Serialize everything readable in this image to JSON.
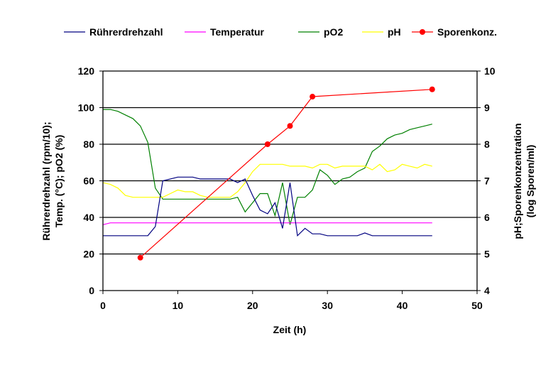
{
  "chart_data": {
    "type": "line",
    "xlabel": "Zeit (h)",
    "ylabel": "Rührerdrehzahl (rpm/10); Temp. (°C); pO2 (%)",
    "y2label": "pH;Sporenkonzentration (log Sporen/ml)",
    "xlim": [
      0,
      50
    ],
    "ylim": [
      0,
      120
    ],
    "y2lim": [
      4,
      10
    ],
    "xticks": [
      "0",
      "10",
      "20",
      "30",
      "40",
      "50"
    ],
    "yticks": [
      "0",
      "20",
      "40",
      "60",
      "80",
      "100",
      "120"
    ],
    "y2ticks": [
      "4",
      "5",
      "6",
      "7",
      "8",
      "9",
      "10"
    ],
    "grid": "horizontal",
    "legend_position": "top",
    "series": [
      {
        "name": "Rührerdrehzahl",
        "color": "#000080",
        "axis": "left",
        "marker": false,
        "x": [
          0,
          1,
          2,
          3,
          4,
          5,
          6,
          7,
          8,
          9,
          10,
          11,
          12,
          13,
          14,
          15,
          16,
          17,
          18,
          19,
          20,
          21,
          22,
          23,
          24,
          25,
          26,
          27,
          28,
          29,
          30,
          31,
          32,
          33,
          34,
          35,
          36,
          37,
          38,
          39,
          40,
          41,
          42,
          43,
          44
        ],
        "y": [
          30,
          30,
          30,
          30,
          30,
          30,
          30,
          35,
          60,
          61,
          62,
          62,
          62,
          61,
          61,
          61,
          61,
          61,
          59,
          61,
          52,
          44,
          42,
          48,
          34,
          59,
          30,
          34,
          31,
          31,
          30,
          30,
          30,
          30,
          30,
          31.5,
          30,
          30,
          30,
          30,
          30,
          30,
          30,
          30,
          30
        ]
      },
      {
        "name": "Temperatur",
        "color": "#FF00FF",
        "axis": "left",
        "marker": false,
        "x": [
          0,
          1,
          44
        ],
        "y": [
          36,
          37,
          37
        ]
      },
      {
        "name": "pO2",
        "color": "#008000",
        "axis": "left",
        "marker": false,
        "x": [
          0,
          1,
          2,
          3,
          4,
          5,
          6,
          7,
          8,
          9,
          10,
          11,
          12,
          13,
          14,
          15,
          16,
          17,
          18,
          19,
          20,
          21,
          22,
          23,
          24,
          25,
          26,
          27,
          28,
          29,
          30,
          31,
          32,
          33,
          34,
          35,
          36,
          37,
          38,
          39,
          40,
          41,
          42,
          43,
          44
        ],
        "y": [
          99,
          99,
          98,
          96,
          94,
          90,
          81,
          56,
          50,
          50,
          50,
          50,
          50,
          50,
          50,
          50,
          50,
          50,
          51,
          43,
          48,
          53,
          53,
          41,
          59,
          36,
          51,
          51,
          55,
          66,
          63,
          58,
          61,
          62,
          65,
          67,
          76,
          79,
          83,
          85,
          86,
          88,
          89,
          90,
          91
        ]
      },
      {
        "name": "pH",
        "color": "#FFFF00",
        "axis": "right",
        "marker": false,
        "x": [
          0,
          1,
          2,
          3,
          4,
          5,
          6,
          7,
          8,
          9,
          10,
          11,
          12,
          13,
          14,
          15,
          16,
          17,
          18,
          19,
          20,
          21,
          22,
          23,
          24,
          25,
          26,
          27,
          28,
          29,
          30,
          31,
          32,
          33,
          34,
          35,
          36,
          37,
          38,
          39,
          40,
          41,
          42,
          43,
          44
        ],
        "y": [
          6.95,
          6.9,
          6.8,
          6.6,
          6.55,
          6.55,
          6.55,
          6.55,
          6.55,
          6.65,
          6.75,
          6.7,
          6.7,
          6.6,
          6.55,
          6.55,
          6.55,
          6.55,
          6.7,
          6.95,
          7.25,
          7.45,
          7.45,
          7.45,
          7.45,
          7.4,
          7.4,
          7.4,
          7.35,
          7.45,
          7.45,
          7.35,
          7.4,
          7.4,
          7.4,
          7.4,
          7.3,
          7.45,
          7.25,
          7.3,
          7.45,
          7.4,
          7.35,
          7.45,
          7.4
        ]
      },
      {
        "name": "Sporenkonz.",
        "color": "#FF0000",
        "axis": "right",
        "marker": true,
        "x": [
          5,
          22,
          25,
          28,
          44
        ],
        "y": [
          4.9,
          8.0,
          8.5,
          9.3,
          9.5
        ]
      }
    ]
  }
}
